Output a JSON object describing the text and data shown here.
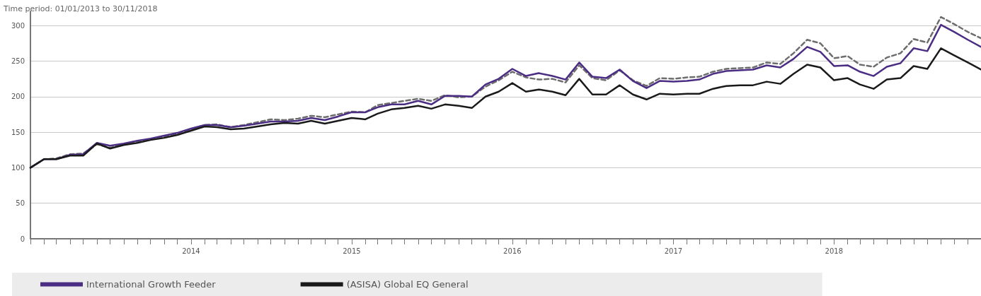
{
  "chart_data": {
    "type": "line",
    "subtitle": "Time period: 01/01/2013 to 30/11/2018",
    "x": [
      "2013-01",
      "2013-02",
      "2013-03",
      "2013-04",
      "2013-05",
      "2013-06",
      "2013-07",
      "2013-08",
      "2013-09",
      "2013-10",
      "2013-11",
      "2013-12",
      "2014-01",
      "2014-02",
      "2014-03",
      "2014-04",
      "2014-05",
      "2014-06",
      "2014-07",
      "2014-08",
      "2014-09",
      "2014-10",
      "2014-11",
      "2014-12",
      "2015-01",
      "2015-02",
      "2015-03",
      "2015-04",
      "2015-05",
      "2015-06",
      "2015-07",
      "2015-08",
      "2015-09",
      "2015-10",
      "2015-11",
      "2015-12",
      "2016-01",
      "2016-02",
      "2016-03",
      "2016-04",
      "2016-05",
      "2016-06",
      "2016-07",
      "2016-08",
      "2016-09",
      "2016-10",
      "2016-11",
      "2016-12",
      "2017-01",
      "2017-02",
      "2017-03",
      "2017-04",
      "2017-05",
      "2017-06",
      "2017-07",
      "2017-08",
      "2017-09",
      "2017-10",
      "2017-11",
      "2017-12",
      "2018-01",
      "2018-02",
      "2018-03",
      "2018-04",
      "2018-05",
      "2018-06",
      "2018-07",
      "2018-08",
      "2018-09",
      "2018-10",
      "2018-11",
      "2018-12"
    ],
    "series": [
      {
        "name": "International Growth Feeder",
        "color": "#4b2d83",
        "line_style": "solid",
        "values": [
          100,
          112,
          112,
          118,
          119,
          135,
          131,
          134,
          138,
          141,
          145,
          149,
          155,
          160,
          160,
          157,
          159,
          162,
          165,
          165,
          166,
          170,
          167,
          172,
          178,
          178,
          185,
          189,
          189,
          194,
          189,
          201,
          201,
          200,
          217,
          225,
          239,
          229,
          233,
          229,
          224,
          248,
          228,
          226,
          238,
          222,
          212,
          222,
          221,
          222,
          224,
          232,
          236,
          237,
          238,
          244,
          241,
          253,
          270,
          263,
          243,
          244,
          235,
          229,
          242,
          247,
          268,
          264,
          301,
          291,
          280,
          270
        ]
      },
      {
        "name": "(ASISA) Global EQ General",
        "color": "#1a1a1a",
        "line_style": "solid",
        "values": [
          100,
          112,
          112,
          117,
          117,
          134,
          127,
          132,
          135,
          139,
          142,
          146,
          152,
          158,
          157,
          154,
          155,
          158,
          161,
          163,
          162,
          166,
          162,
          166,
          170,
          168,
          176,
          182,
          184,
          187,
          183,
          189,
          187,
          184,
          200,
          207,
          219,
          207,
          210,
          207,
          202,
          225,
          203,
          203,
          216,
          203,
          196,
          204,
          203,
          204,
          204,
          211,
          215,
          216,
          216,
          221,
          218,
          232,
          245,
          241,
          223,
          226,
          217,
          211,
          224,
          226,
          243,
          239,
          268,
          258,
          248,
          238
        ]
      },
      {
        "color": "#6d6d6d",
        "line_style": "dashed",
        "values": [
          100,
          112,
          113,
          119,
          120,
          133,
          128,
          133,
          137,
          140,
          144,
          148,
          154,
          160,
          161,
          157,
          160,
          164,
          168,
          167,
          169,
          173,
          171,
          175,
          179,
          178,
          188,
          191,
          194,
          197,
          194,
          202,
          199,
          200,
          214,
          223,
          235,
          227,
          224,
          225,
          220,
          244,
          226,
          223,
          237,
          223,
          215,
          226,
          225,
          227,
          228,
          235,
          239,
          240,
          241,
          248,
          246,
          261,
          280,
          275,
          254,
          257,
          245,
          242,
          255,
          261,
          281,
          276,
          312,
          302,
          291,
          282
        ]
      }
    ],
    "xlim": [
      "2013-01",
      "2018-12"
    ],
    "xticks": [
      {
        "value": "2013-01",
        "label": null
      },
      {
        "value": "2013-02",
        "label": null
      },
      {
        "value": "2013-03",
        "label": null
      },
      {
        "value": "2013-04",
        "label": null
      },
      {
        "value": "2013-05",
        "label": null
      },
      {
        "value": "2013-06",
        "label": null
      },
      {
        "value": "2013-07",
        "label": null
      },
      {
        "value": "2013-08",
        "label": null
      },
      {
        "value": "2013-09",
        "label": null
      },
      {
        "value": "2013-10",
        "label": null
      },
      {
        "value": "2013-11",
        "label": null
      },
      {
        "value": "2013-12",
        "label": null
      },
      {
        "value": "2014-01",
        "label": "2014"
      },
      {
        "value": "2014-02",
        "label": null
      },
      {
        "value": "2014-03",
        "label": null
      },
      {
        "value": "2014-04",
        "label": null
      },
      {
        "value": "2014-05",
        "label": null
      },
      {
        "value": "2014-06",
        "label": null
      },
      {
        "value": "2014-07",
        "label": null
      },
      {
        "value": "2014-08",
        "label": null
      },
      {
        "value": "2014-09",
        "label": null
      },
      {
        "value": "2014-10",
        "label": null
      },
      {
        "value": "2014-11",
        "label": null
      },
      {
        "value": "2014-12",
        "label": null
      },
      {
        "value": "2015-01",
        "label": "2015"
      },
      {
        "value": "2015-02",
        "label": null
      },
      {
        "value": "2015-03",
        "label": null
      },
      {
        "value": "2015-04",
        "label": null
      },
      {
        "value": "2015-05",
        "label": null
      },
      {
        "value": "2015-06",
        "label": null
      },
      {
        "value": "2015-07",
        "label": null
      },
      {
        "value": "2015-08",
        "label": null
      },
      {
        "value": "2015-09",
        "label": null
      },
      {
        "value": "2015-10",
        "label": null
      },
      {
        "value": "2015-11",
        "label": null
      },
      {
        "value": "2015-12",
        "label": null
      },
      {
        "value": "2016-01",
        "label": "2016"
      },
      {
        "value": "2016-02",
        "label": null
      },
      {
        "value": "2016-03",
        "label": null
      },
      {
        "value": "2016-04",
        "label": null
      },
      {
        "value": "2016-05",
        "label": null
      },
      {
        "value": "2016-06",
        "label": null
      },
      {
        "value": "2016-07",
        "label": null
      },
      {
        "value": "2016-08",
        "label": null
      },
      {
        "value": "2016-09",
        "label": null
      },
      {
        "value": "2016-10",
        "label": null
      },
      {
        "value": "2016-11",
        "label": null
      },
      {
        "value": "2016-12",
        "label": null
      },
      {
        "value": "2017-01",
        "label": "2017"
      },
      {
        "value": "2017-02",
        "label": null
      },
      {
        "value": "2017-03",
        "label": null
      },
      {
        "value": "2017-04",
        "label": null
      },
      {
        "value": "2017-05",
        "label": null
      },
      {
        "value": "2017-06",
        "label": null
      },
      {
        "value": "2017-07",
        "label": null
      },
      {
        "value": "2017-08",
        "label": null
      },
      {
        "value": "2017-09",
        "label": null
      },
      {
        "value": "2017-10",
        "label": null
      },
      {
        "value": "2017-11",
        "label": null
      },
      {
        "value": "2017-12",
        "label": null
      },
      {
        "value": "2018-01",
        "label": "2018"
      },
      {
        "value": "2018-02",
        "label": null
      },
      {
        "value": "2018-03",
        "label": null
      },
      {
        "value": "2018-04",
        "label": null
      },
      {
        "value": "2018-05",
        "label": null
      },
      {
        "value": "2018-06",
        "label": null
      },
      {
        "value": "2018-07",
        "label": null
      },
      {
        "value": "2018-08",
        "label": null
      },
      {
        "value": "2018-09",
        "label": null
      },
      {
        "value": "2018-10",
        "label": null
      },
      {
        "value": "2018-11",
        "label": null
      },
      {
        "value": "2018-12",
        "label": null
      }
    ],
    "ylim": [
      0,
      320
    ],
    "yticks": [
      0,
      50,
      100,
      150,
      200,
      250,
      300
    ],
    "grid": "y",
    "legend": "bottom",
    "marker": "none"
  }
}
